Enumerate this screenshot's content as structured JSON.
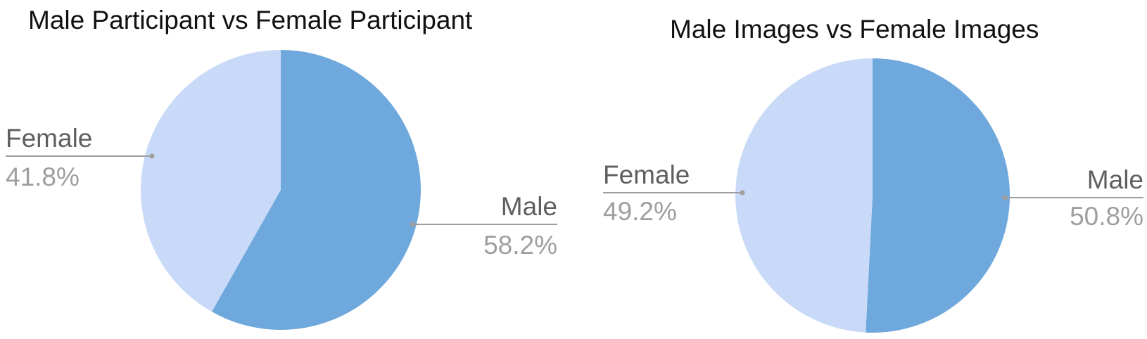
{
  "chart_data": [
    {
      "type": "pie",
      "title": "Male Participant vs Female Participant",
      "slices": [
        {
          "label": "Male",
          "value": 58.2,
          "display": "58.2%",
          "color": "#6fa8dc"
        },
        {
          "label": "Female",
          "value": 41.8,
          "display": "41.8%",
          "color": "#c9daf8"
        }
      ],
      "start_angle_deg": 0,
      "direction": "clockwise",
      "legend": "none"
    },
    {
      "type": "pie",
      "title": "Male Images vs Female Images",
      "slices": [
        {
          "label": "Male",
          "value": 50.8,
          "display": "50.8%",
          "color": "#6fa8dc"
        },
        {
          "label": "Female",
          "value": 49.2,
          "display": "49.2%",
          "color": "#c9daf8"
        }
      ],
      "start_angle_deg": 0,
      "direction": "clockwise",
      "legend": "none"
    }
  ]
}
